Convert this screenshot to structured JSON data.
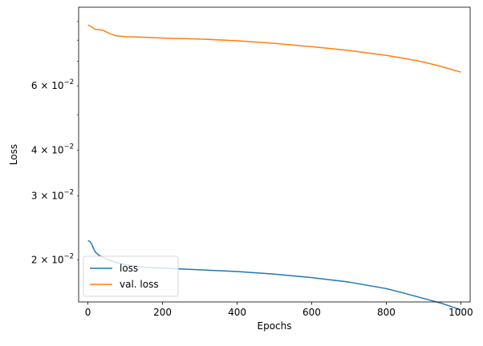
{
  "chart_data": {
    "type": "line",
    "xlabel": "Epochs",
    "ylabel": "Loss",
    "yscale": "log",
    "xlim": [
      -25,
      1025
    ],
    "ylim": [
      0.01535,
      0.0985
    ],
    "x_ticks": [
      0,
      200,
      400,
      600,
      800,
      1000
    ],
    "x_tick_labels": [
      "0",
      "200",
      "400",
      "600",
      "800",
      "1000"
    ],
    "y_major_ticks": [],
    "y_minor_ticks": [
      0.02,
      0.03,
      0.04,
      0.06
    ],
    "y_minor_tick_labels": [
      {
        "base": "2",
        "exp": "-2"
      },
      {
        "base": "3",
        "exp": "-2"
      },
      {
        "base": "4",
        "exp": "-2"
      },
      {
        "base": "6",
        "exp": "-2"
      }
    ],
    "y_unlabeled_minor_ticks": [
      0.05,
      0.07,
      0.08,
      0.09
    ],
    "grid": false,
    "legend_position": "lower-left",
    "series": [
      {
        "name": "loss",
        "color": "#1f77b4",
        "x": [
          0,
          5,
          10,
          15,
          20,
          30,
          50,
          75,
          100,
          150,
          200,
          300,
          400,
          500,
          600,
          700,
          800,
          850,
          900,
          950,
          1000
        ],
        "y": [
          0.0226,
          0.0225,
          0.0221,
          0.0215,
          0.021,
          0.0206,
          0.0201,
          0.0197,
          0.0194,
          0.0191,
          0.019,
          0.0188,
          0.0186,
          0.0183,
          0.0179,
          0.0174,
          0.0167,
          0.0162,
          0.0157,
          0.0152,
          0.0146
        ]
      },
      {
        "name": "val. loss",
        "color": "#ff7f0e",
        "x": [
          0,
          3,
          6,
          10,
          15,
          20,
          30,
          40,
          50,
          60,
          70,
          80,
          100,
          150,
          200,
          300,
          400,
          500,
          600,
          700,
          800,
          850,
          900,
          950,
          1000
        ],
        "y": [
          0.088,
          0.0878,
          0.0874,
          0.0872,
          0.0862,
          0.0856,
          0.0855,
          0.0852,
          0.0842,
          0.0833,
          0.0826,
          0.0821,
          0.0818,
          0.0815,
          0.0811,
          0.0806,
          0.0797,
          0.0784,
          0.0768,
          0.075,
          0.0727,
          0.0713,
          0.0697,
          0.0677,
          0.0654
        ]
      }
    ]
  }
}
